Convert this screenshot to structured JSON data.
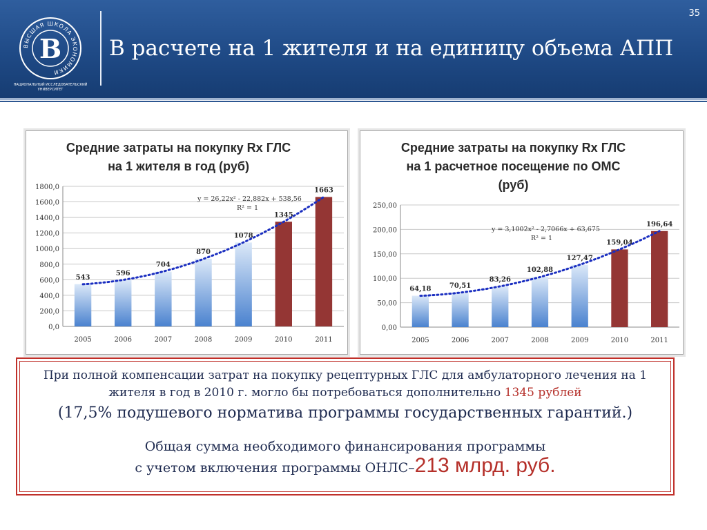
{
  "header": {
    "title": "В расчете на 1 жителя и на единицу объема АПП",
    "page_number": "35",
    "logo": {
      "ring_text": "ВЫСШАЯ ШКОЛА ЭКОНОМИКИ",
      "caption_line1": "НАЦИОНАЛЬНЫЙ ИССЛЕДОВАТЕЛЬСКИЙ",
      "caption_line2": "УНИВЕРСИТЕТ"
    }
  },
  "colors": {
    "bar_blue": "#4a82cf",
    "bar_red": "#943634",
    "trend": "#1a2ec0",
    "header_blue": "#1f4a86",
    "border_red": "#c0302a"
  },
  "chart_data": [
    {
      "type": "bar",
      "title_lines": [
        "Средние затраты на покупку Rx ГЛС",
        "на 1 жителя в год (руб)"
      ],
      "categories": [
        "2005",
        "2006",
        "2007",
        "2008",
        "2009",
        "2010",
        "2011"
      ],
      "values": [
        543,
        596,
        704,
        870,
        1078,
        1345,
        1663
      ],
      "value_labels": [
        "543",
        "596",
        "704",
        "870",
        "1078",
        "1345",
        "1663"
      ],
      "bar_colors": [
        "blue",
        "blue",
        "blue",
        "blue",
        "blue",
        "red",
        "red"
      ],
      "ylim": [
        0,
        1800
      ],
      "y_ticks": [
        "0,0",
        "200,0",
        "400,0",
        "600,0",
        "800,0",
        "1000,0",
        "1200,0",
        "1400,0",
        "1600,0",
        "1800,0"
      ],
      "grid": true,
      "trendline": {
        "type": "poly2",
        "coefficients": [
          26.22,
          -22.882,
          538.56
        ],
        "equation": "y = 26,22x² - 22,882x + 538,56",
        "r2": "R² = 1"
      }
    },
    {
      "type": "bar",
      "title_lines": [
        "Средние затраты на покупку Rx ГЛС",
        "на 1 расчетное посещение по ОМС",
        "(руб)"
      ],
      "categories": [
        "2005",
        "2006",
        "2007",
        "2008",
        "2009",
        "2010",
        "2011"
      ],
      "values": [
        64.18,
        70.51,
        83.26,
        102.88,
        127.47,
        159.04,
        196.64
      ],
      "value_labels": [
        "64,18",
        "70,51",
        "83,26",
        "102,88",
        "127,47",
        "159,04",
        "196,64"
      ],
      "bar_colors": [
        "blue",
        "blue",
        "blue",
        "blue",
        "blue",
        "red",
        "red"
      ],
      "ylim": [
        0,
        250
      ],
      "y_ticks": [
        "0,00",
        "50,00",
        "100,00",
        "150,00",
        "200,00",
        "250,00"
      ],
      "grid": true,
      "trendline": {
        "type": "poly2",
        "coefficients": [
          3.1002,
          -2.7066,
          63.675
        ],
        "equation": "y = 3,1002x² - 2,7066x + 63,675",
        "r2": "R² = 1"
      }
    }
  ],
  "infobox": {
    "line1_text": "При полной компенсации затрат на покупку рецептурных ГЛС для амбулаторного лечения на 1 жителя в год в 2010 г. могло бы потребоваться дополнительно",
    "line1_highlight": "1345 рублей",
    "line2": "(17,5% подушевого норматива программы государственных гарантий.)",
    "line3": "Общая сумма необходимого финансирования программы",
    "line4_text": "с учетом включения  программы ОНЛС–",
    "line4_highlight": "213 млрд. руб."
  }
}
